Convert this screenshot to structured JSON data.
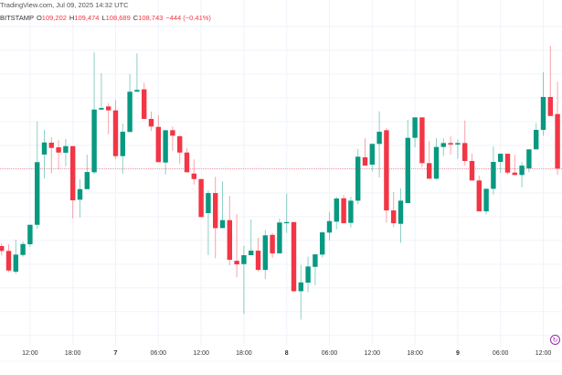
{
  "header": {
    "source_line": "TradingView.com, Jul 09, 2025 14:32 UTC",
    "exchange": "BITSTAMP",
    "o_key": "O",
    "o_val": "109,202",
    "h_key": "H",
    "h_val": "109,474",
    "l_key": "L",
    "l_val": "108,689",
    "c_key": "C",
    "c_val": "108,743",
    "change": "−444 (−0.41%)"
  },
  "colors": {
    "up": "#089981",
    "down": "#f23645",
    "grid": "#f0f3fa",
    "last_price_line": "#f23645",
    "replay": "#9c27b0"
  },
  "icons": {
    "replay": "replay-icon"
  },
  "chart_data": {
    "type": "candlestick",
    "interval": "1h",
    "ylim": [
      107275,
      110162
    ],
    "last_price": 108743,
    "grid": true,
    "y_grid_step": 200,
    "xticks": [
      {
        "label": "12:00",
        "at": 4
      },
      {
        "label": "18:00",
        "at": 10
      },
      {
        "label": "7",
        "at": 16
      },
      {
        "label": "06:00",
        "at": 22
      },
      {
        "label": "12:00",
        "at": 28
      },
      {
        "label": "18:00",
        "at": 34
      },
      {
        "label": "8",
        "at": 40
      },
      {
        "label": "06:00",
        "at": 46
      },
      {
        "label": "12:00",
        "at": 52
      },
      {
        "label": "18:00",
        "at": 58
      },
      {
        "label": "9",
        "at": 64
      },
      {
        "label": "06:00",
        "at": 70
      },
      {
        "label": "12:00",
        "at": 76
      }
    ],
    "candles": [
      [
        108091,
        108114,
        108011,
        108050
      ],
      [
        108050,
        108104,
        107873,
        107885
      ],
      [
        107875,
        108145,
        107857,
        108019
      ],
      [
        108016,
        108129,
        108001,
        108108
      ],
      [
        108106,
        108270,
        108083,
        108270
      ],
      [
        108270,
        109140,
        108237,
        108797
      ],
      [
        108861,
        109071,
        108660,
        108963
      ],
      [
        108961,
        109007,
        108704,
        108917
      ],
      [
        108922,
        108982,
        108737,
        108878
      ],
      [
        108876,
        108992,
        108761,
        108932
      ],
      [
        108932,
        108932,
        108324,
        108476
      ],
      [
        108481,
        108653,
        108332,
        108570
      ],
      [
        108570,
        108861,
        108570,
        108714
      ],
      [
        108712,
        109721,
        108694,
        109240
      ],
      [
        109240,
        109546,
        109233,
        109253
      ],
      [
        109266,
        109294,
        109032,
        109233
      ],
      [
        109233,
        109320,
        108822,
        108848
      ],
      [
        108848,
        109122,
        108699,
        109053
      ],
      [
        109051,
        109538,
        109051,
        109390
      ],
      [
        109390,
        109713,
        109390,
        109405
      ],
      [
        109410,
        109464,
        109161,
        109161
      ],
      [
        109161,
        109223,
        109059,
        109097
      ],
      [
        109094,
        109192,
        108797,
        108797
      ],
      [
        108794,
        109066,
        108694,
        109066
      ],
      [
        109066,
        109097,
        108891,
        109020
      ],
      [
        109015,
        109025,
        108784,
        108878
      ],
      [
        108878,
        108915,
        108712,
        108712
      ],
      [
        108701,
        108820,
        108609,
        108655
      ],
      [
        108655,
        108655,
        108335,
        108335
      ],
      [
        108368,
        108558,
        108014,
        108537
      ],
      [
        108537,
        108674,
        107988,
        108242
      ],
      [
        108242,
        108637,
        108242,
        108309
      ],
      [
        108309,
        108514,
        107929,
        107975
      ],
      [
        107967,
        108360,
        107827,
        107937
      ],
      [
        107939,
        108093,
        107519,
        108014
      ],
      [
        108014,
        108314,
        108014,
        108052
      ],
      [
        108052,
        108160,
        107877,
        107890
      ],
      [
        107890,
        108227,
        107813,
        108181
      ],
      [
        108185,
        108201,
        107993,
        108029
      ],
      [
        108029,
        108322,
        108029,
        108289
      ],
      [
        108283,
        108532,
        108201,
        108293
      ],
      [
        108293,
        108293,
        107703,
        107711
      ],
      [
        107711,
        107934,
        107472,
        107785
      ],
      [
        107783,
        108001,
        107703,
        107919
      ],
      [
        107916,
        108021,
        107762,
        108021
      ],
      [
        108019,
        108216,
        107993,
        108206
      ],
      [
        108204,
        108378,
        108139,
        108301
      ],
      [
        108296,
        108506,
        108232,
        108491
      ],
      [
        108493,
        108520,
        108283,
        108283
      ],
      [
        108286,
        108506,
        108247,
        108473
      ],
      [
        108473,
        108909,
        108443,
        108843
      ],
      [
        108838,
        108999,
        108768,
        108768
      ],
      [
        108776,
        108951,
        108720,
        108951
      ],
      [
        108951,
        109225,
        108668,
        109053
      ],
      [
        109066,
        109084,
        108289,
        108391
      ],
      [
        108391,
        108545,
        108250,
        108283
      ],
      [
        108278,
        108576,
        108119,
        108473
      ],
      [
        108453,
        109153,
        108453,
        109002
      ],
      [
        109002,
        109174,
        108922,
        109174
      ],
      [
        109174,
        109174,
        108755,
        108789
      ],
      [
        108789,
        108974,
        108658,
        108658
      ],
      [
        108658,
        108999,
        108647,
        108925
      ],
      [
        108925,
        108999,
        108848,
        108958
      ],
      [
        108958,
        109015,
        108861,
        108945
      ],
      [
        108945,
        108989,
        108825,
        108958
      ],
      [
        108958,
        109148,
        108771,
        108807
      ],
      [
        108807,
        108868,
        108643,
        108643
      ],
      [
        108643,
        108684,
        108383,
        108383
      ],
      [
        108383,
        108573,
        108358,
        108573
      ],
      [
        108573,
        108928,
        108524,
        108799
      ],
      [
        108799,
        108868,
        108707,
        108868
      ],
      [
        108868,
        108868,
        108694,
        108709
      ],
      [
        108709,
        108858,
        108689,
        108689
      ],
      [
        108689,
        108797,
        108586,
        108768
      ],
      [
        108745,
        108905,
        108712,
        108905
      ],
      [
        108905,
        109125,
        108905,
        109069
      ],
      [
        109069,
        109554,
        109020,
        109346
      ],
      [
        109346,
        109777,
        109186,
        109186
      ],
      [
        109202,
        109474,
        108689,
        108743
      ]
    ],
    "candle_format": [
      "open",
      "high",
      "low",
      "close"
    ]
  }
}
